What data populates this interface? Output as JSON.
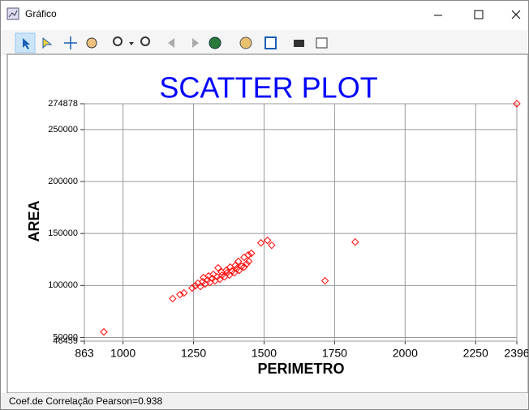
{
  "window": {
    "title": "Gráfico",
    "status": "Coef.de Correlação Pearson=0.938"
  },
  "chart_data": {
    "type": "scatter",
    "title": "SCATTER PLOT",
    "x_label": "PERIMETRO",
    "y_label": "AREA",
    "color": "#ff0000",
    "marker": "diamond",
    "grid": true,
    "xlim": [
      863,
      2396
    ],
    "ylim": [
      46459,
      274878
    ],
    "xticks": [
      863,
      1000,
      1250,
      1500,
      1750,
      2000,
      2250,
      2396
    ],
    "yticks": [
      46459,
      50000,
      100000,
      150000,
      200000,
      250000,
      274878
    ],
    "x": [
      932,
      1176,
      1202,
      1216,
      1245,
      1257,
      1265,
      1274,
      1283,
      1291,
      1300,
      1308,
      1317,
      1326,
      1334,
      1343,
      1351,
      1360,
      1369,
      1377,
      1386,
      1395,
      1403,
      1412,
      1420,
      1429,
      1438,
      1446,
      1455,
      1285,
      1320,
      1349,
      1380,
      1409,
      1429,
      1444,
      1398,
      1366,
      1337,
      1303,
      1489,
      1512,
      1527,
      1716,
      1823,
      2396
    ],
    "y": [
      55400,
      87350,
      91250,
      92800,
      97500,
      99800,
      102140,
      99030,
      103700,
      101360,
      105250,
      102920,
      106810,
      104470,
      108370,
      106030,
      109930,
      108370,
      112260,
      109930,
      113820,
      112260,
      116150,
      114590,
      118480,
      117710,
      120820,
      123150,
      130940,
      107590,
      110700,
      113040,
      117710,
      123150,
      127040,
      129380,
      119260,
      114590,
      116930,
      109150,
      141000,
      143400,
      138700,
      104500,
      141800,
      274878
    ]
  }
}
